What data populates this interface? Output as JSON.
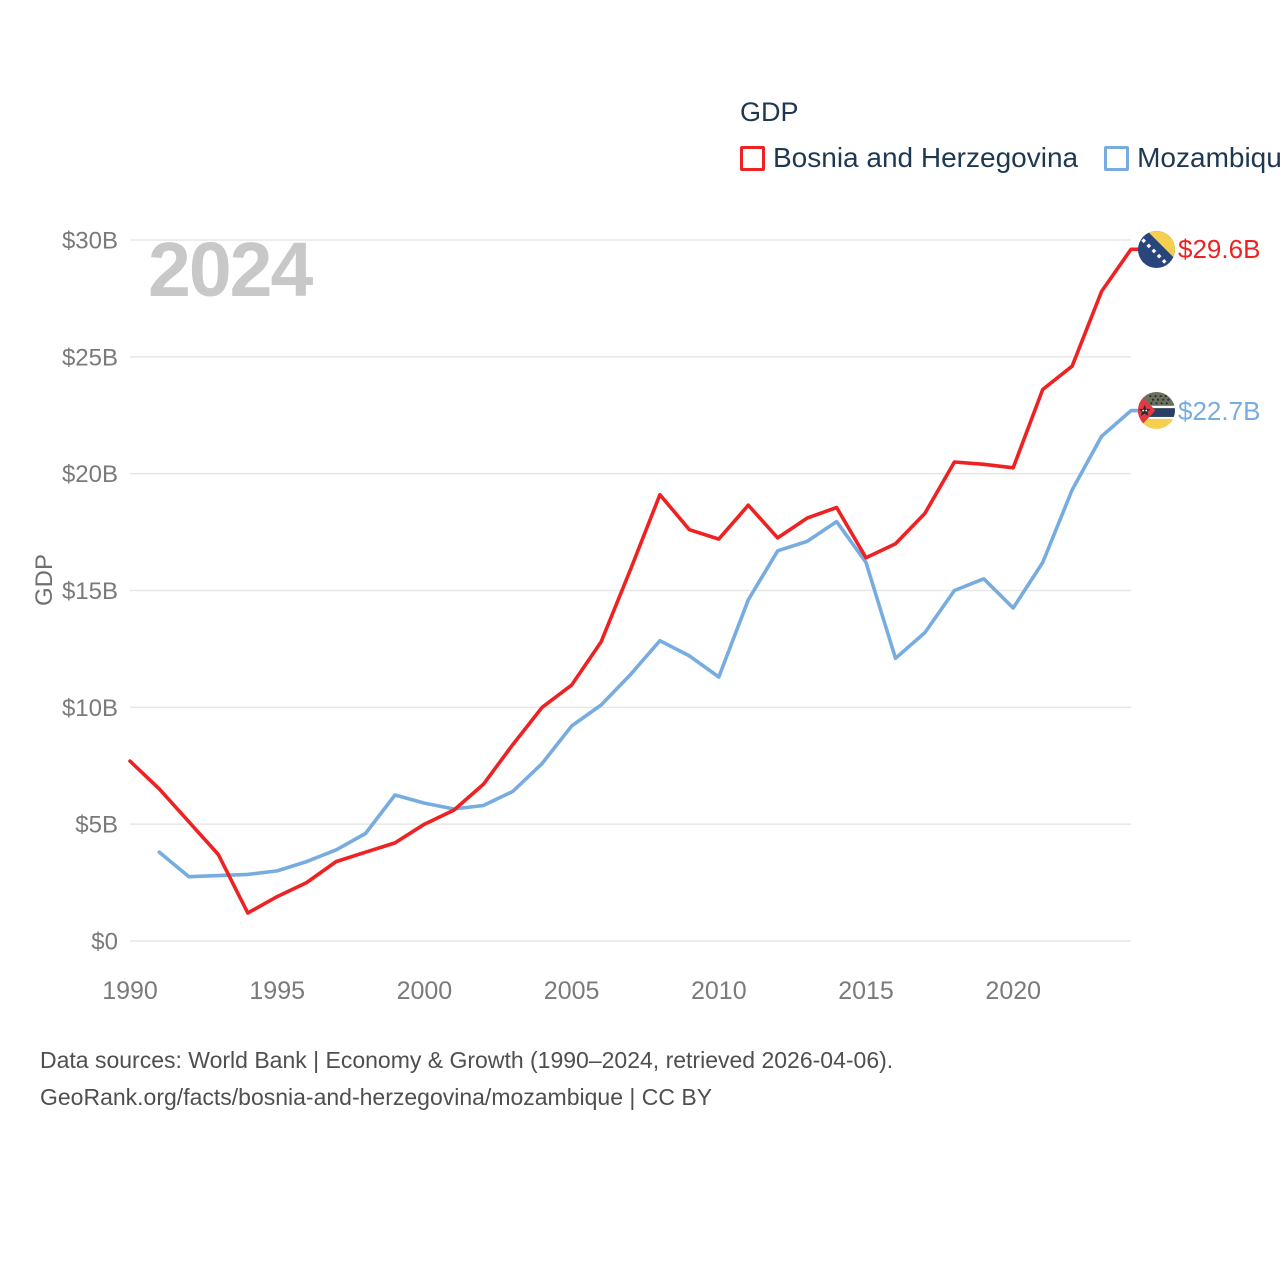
{
  "page": {
    "footer": {
      "line1": "Data sources: World Bank | Economy & Growth (1990–2024, retrieved 2026-04-06).",
      "line2": "GeoRank.org/facts/bosnia-and-herzegovina/mozambique | CC BY"
    }
  },
  "legend": {
    "title": "GDP",
    "items": [
      {
        "label": "Bosnia and Herzegovina",
        "color": "#ee2222"
      },
      {
        "label": "Mozambique",
        "color": "#77ace0"
      }
    ]
  },
  "chart_data": {
    "type": "line",
    "title": "GDP",
    "ylabel": "GDP",
    "watermark": "2024",
    "grid": true,
    "legend_position": "top-right",
    "ylim": [
      0,
      30
    ],
    "yticks": [
      {
        "value": 0,
        "label": "$0"
      },
      {
        "value": 5,
        "label": "$5B"
      },
      {
        "value": 10,
        "label": "$10B"
      },
      {
        "value": 15,
        "label": "$15B"
      },
      {
        "value": 20,
        "label": "$20B"
      },
      {
        "value": 25,
        "label": "$25B"
      },
      {
        "value": 30,
        "label": "$30B"
      }
    ],
    "xticks": [
      {
        "value": 1990,
        "label": "1990"
      },
      {
        "value": 1995,
        "label": "1995"
      },
      {
        "value": 2000,
        "label": "2000"
      },
      {
        "value": 2005,
        "label": "2005"
      },
      {
        "value": 2010,
        "label": "2010"
      },
      {
        "value": 2015,
        "label": "2015"
      },
      {
        "value": 2020,
        "label": "2020"
      }
    ],
    "years": [
      1990,
      1991,
      1992,
      1993,
      1994,
      1995,
      1996,
      1997,
      1998,
      1999,
      2000,
      2001,
      2002,
      2003,
      2004,
      2005,
      2006,
      2007,
      2008,
      2009,
      2010,
      2011,
      2012,
      2013,
      2014,
      2015,
      2016,
      2017,
      2018,
      2019,
      2020,
      2021,
      2022,
      2023,
      2024
    ],
    "series": [
      {
        "name": "Bosnia and Herzegovina",
        "color": "#ee2222",
        "end_label": "$29.6B",
        "end_value_billion": 29.6,
        "flag_icon": "bosnia-and-herzegovina-flag-icon",
        "values": [
          7.7,
          6.5,
          5.1,
          3.7,
          1.2,
          1.9,
          2.5,
          3.4,
          3.8,
          4.2,
          5.0,
          5.6,
          6.7,
          8.4,
          10.0,
          10.95,
          12.8,
          15.9,
          19.1,
          17.6,
          17.2,
          18.65,
          17.25,
          18.1,
          18.55,
          16.4,
          17.0,
          18.3,
          20.5,
          20.4,
          20.25,
          23.6,
          24.6,
          27.8,
          29.6
        ]
      },
      {
        "name": "Mozambique",
        "color": "#77ace0",
        "end_label": "$22.7B",
        "end_value_billion": 22.7,
        "flag_icon": "mozambique-flag-icon",
        "values": [
          null,
          3.8,
          2.75,
          2.8,
          2.85,
          3.0,
          3.4,
          3.9,
          4.6,
          6.25,
          5.9,
          5.65,
          5.8,
          6.4,
          7.6,
          9.2,
          10.1,
          11.4,
          12.85,
          12.2,
          11.3,
          14.6,
          16.7,
          17.1,
          17.95,
          16.2,
          12.1,
          13.2,
          15.0,
          15.5,
          14.25,
          16.2,
          19.3,
          21.6,
          22.7
        ]
      }
    ]
  },
  "colors": {
    "grid": "#e7e7e7",
    "tick_text": "#7a7a7a",
    "axis_title": "#6f6f6f",
    "watermark": "#c8c8c8",
    "legend_text": "#1e3852",
    "footer_text": "#4f4f4f"
  }
}
